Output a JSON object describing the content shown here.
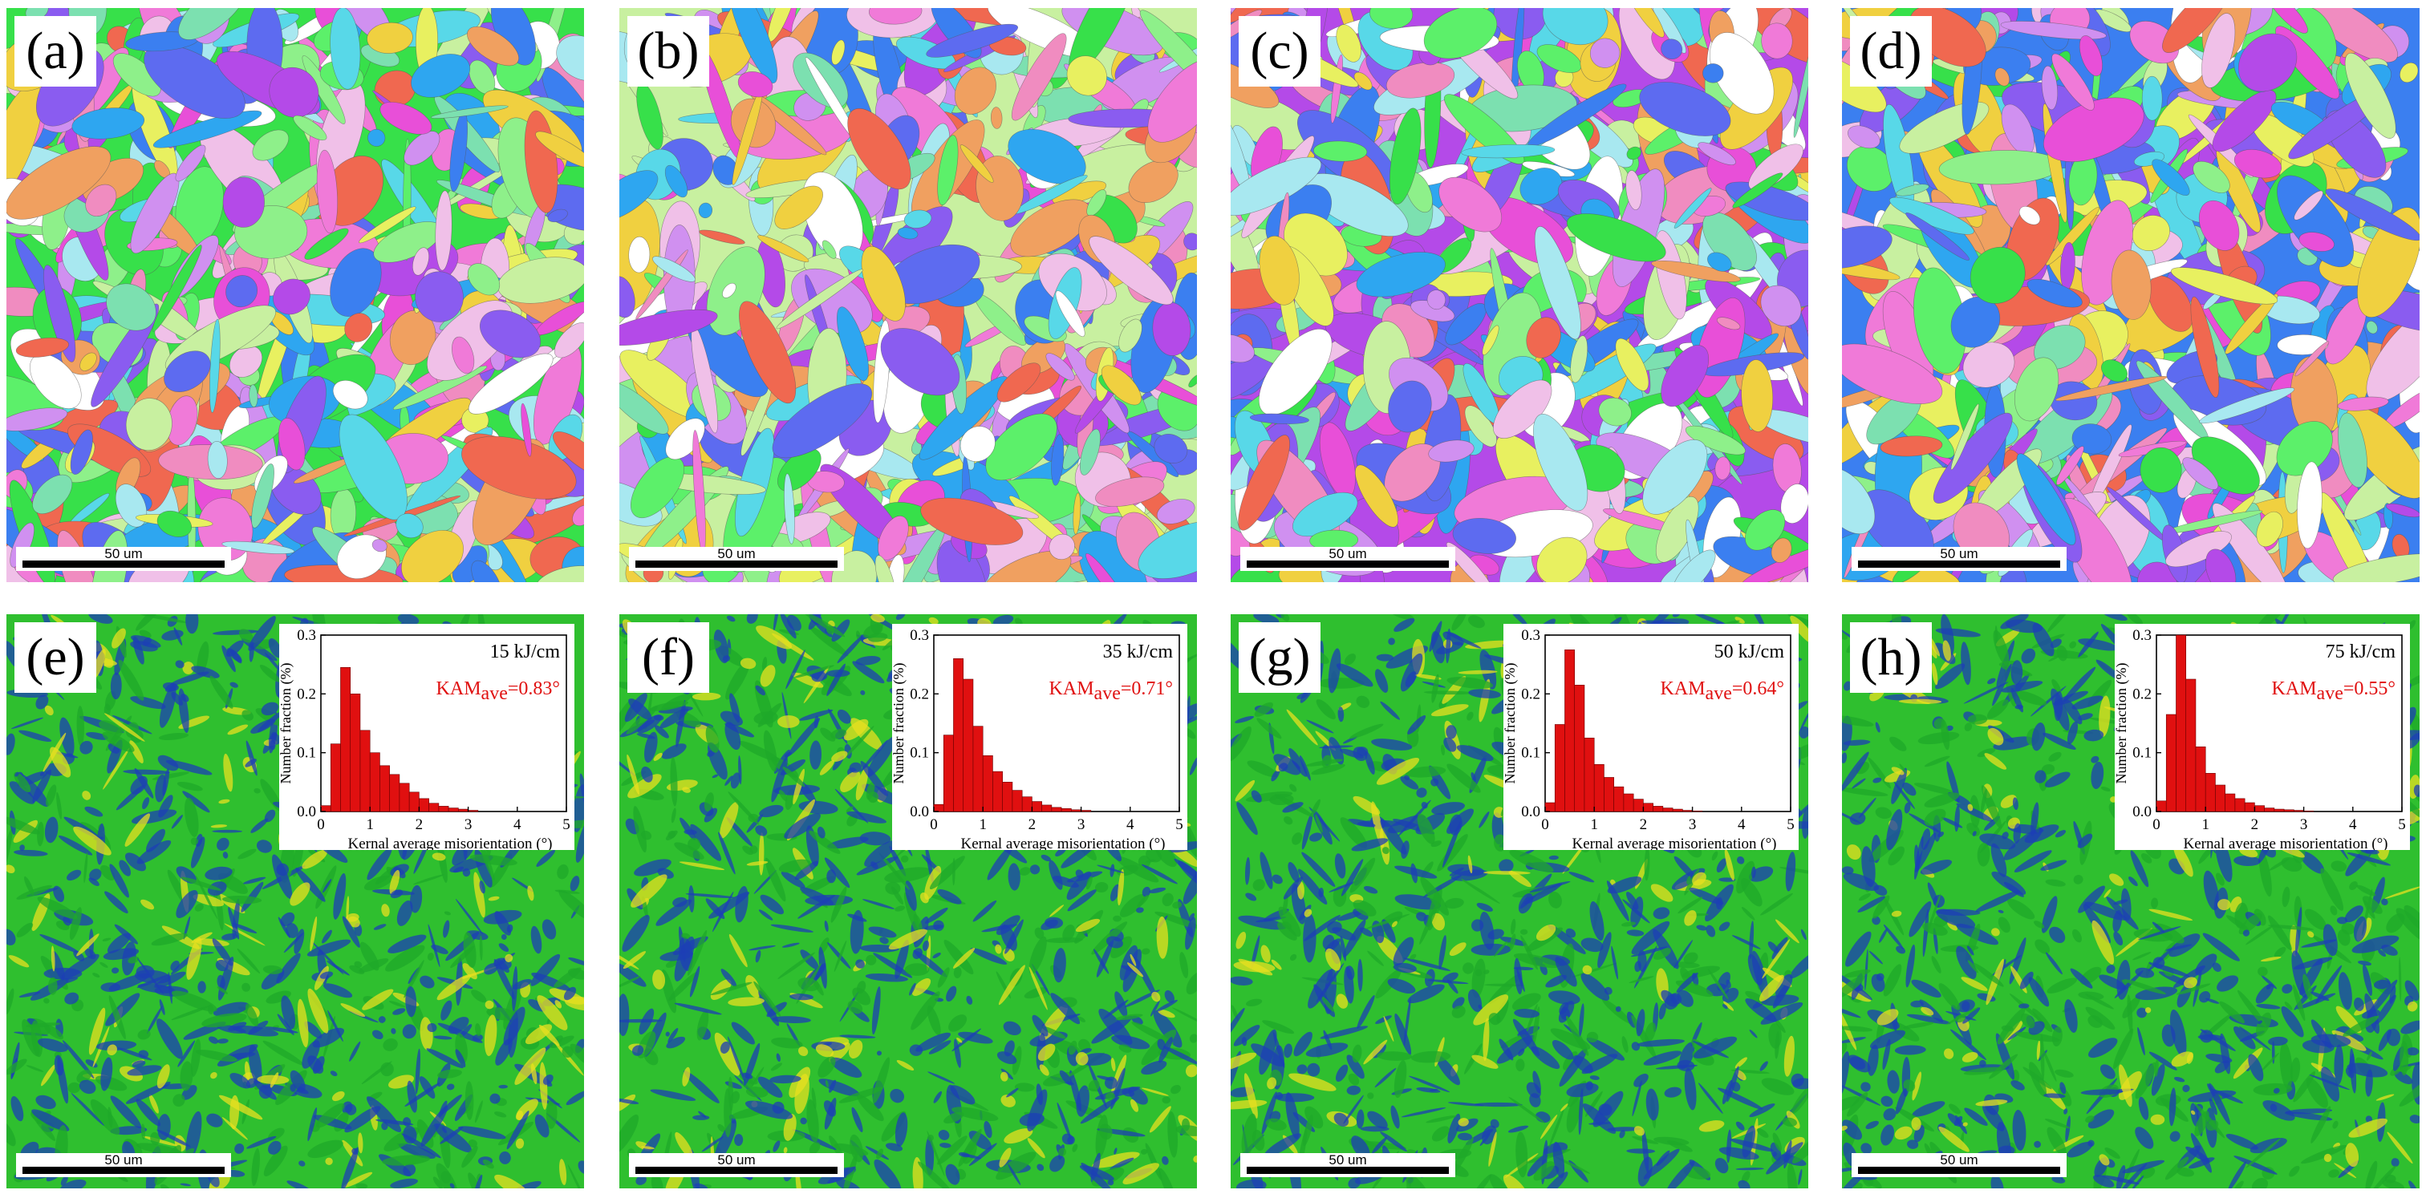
{
  "panels": [
    {
      "label": "(a)",
      "type": "ipf",
      "scale_bar": "50 um"
    },
    {
      "label": "(b)",
      "type": "ipf",
      "scale_bar": "50 um"
    },
    {
      "label": "(c)",
      "type": "ipf",
      "scale_bar": "50 um"
    },
    {
      "label": "(d)",
      "type": "ipf",
      "scale_bar": "50 um"
    },
    {
      "label": "(e)",
      "type": "kam",
      "scale_bar": "50 um"
    },
    {
      "label": "(f)",
      "type": "kam",
      "scale_bar": "50 um"
    },
    {
      "label": "(g)",
      "type": "kam",
      "scale_bar": "50 um"
    },
    {
      "label": "(h)",
      "type": "kam",
      "scale_bar": "50 um"
    }
  ],
  "colors": {
    "bar_fill": "#e01010",
    "kam_text": "#e01010",
    "kam_low": "#1c3fb5",
    "kam_mid": "#2fbf2f",
    "kam_high": "#e8e020"
  },
  "chart_data": [
    {
      "type": "bar",
      "panel": "(e)",
      "heat_input": "15 kJ/cm",
      "kam_prefix": "KAM",
      "kam_subscript": "ave",
      "kam_value": "=0.83°",
      "xlabel": "Kernal average misorientation (°)",
      "ylabel": "Number fraction (%)",
      "xlim": [
        0,
        5
      ],
      "ylim": [
        0,
        0.3
      ],
      "xticks": [
        "0",
        "1",
        "2",
        "3",
        "4",
        "5"
      ],
      "yticks": [
        "0.0",
        "0.1",
        "0.2",
        "0.3"
      ],
      "bin_width": 0.2,
      "x": [
        0.1,
        0.3,
        0.5,
        0.7,
        0.9,
        1.1,
        1.3,
        1.5,
        1.7,
        1.9,
        2.1,
        2.3,
        2.5,
        2.7,
        2.9,
        3.1
      ],
      "values": [
        0.01,
        0.115,
        0.245,
        0.2,
        0.138,
        0.1,
        0.078,
        0.063,
        0.048,
        0.033,
        0.022,
        0.014,
        0.009,
        0.006,
        0.004,
        0.002
      ]
    },
    {
      "type": "bar",
      "panel": "(f)",
      "heat_input": "35 kJ/cm",
      "kam_prefix": "KAM",
      "kam_subscript": "ave",
      "kam_value": "=0.71°",
      "xlabel": "Kernal average misorientation (°)",
      "ylabel": "Number fraction (%)",
      "xlim": [
        0,
        5
      ],
      "ylim": [
        0,
        0.3
      ],
      "xticks": [
        "0",
        "1",
        "2",
        "3",
        "4",
        "5"
      ],
      "yticks": [
        "0.0",
        "0.1",
        "0.2",
        "0.3"
      ],
      "bin_width": 0.2,
      "x": [
        0.1,
        0.3,
        0.5,
        0.7,
        0.9,
        1.1,
        1.3,
        1.5,
        1.7,
        1.9,
        2.1,
        2.3,
        2.5,
        2.7,
        2.9,
        3.1
      ],
      "values": [
        0.012,
        0.13,
        0.26,
        0.225,
        0.145,
        0.095,
        0.068,
        0.05,
        0.036,
        0.025,
        0.017,
        0.011,
        0.007,
        0.005,
        0.003,
        0.002
      ]
    },
    {
      "type": "bar",
      "panel": "(g)",
      "heat_input": "50 kJ/cm",
      "kam_prefix": "KAM",
      "kam_subscript": "ave",
      "kam_value": "=0.64°",
      "xlabel": "Kernal average misorientation (°)",
      "ylabel": "Number fraction (%)",
      "xlim": [
        0,
        5
      ],
      "ylim": [
        0,
        0.3
      ],
      "xticks": [
        "0",
        "1",
        "2",
        "3",
        "4",
        "5"
      ],
      "yticks": [
        "0.0",
        "0.1",
        "0.2",
        "0.3"
      ],
      "bin_width": 0.2,
      "x": [
        0.1,
        0.3,
        0.5,
        0.7,
        0.9,
        1.1,
        1.3,
        1.5,
        1.7,
        1.9,
        2.1,
        2.3,
        2.5,
        2.7,
        2.9,
        3.1
      ],
      "values": [
        0.015,
        0.148,
        0.275,
        0.215,
        0.125,
        0.08,
        0.058,
        0.042,
        0.03,
        0.021,
        0.014,
        0.009,
        0.006,
        0.004,
        0.002,
        0.001
      ]
    },
    {
      "type": "bar",
      "panel": "(h)",
      "heat_input": "75 kJ/cm",
      "kam_prefix": "KAM",
      "kam_subscript": "ave",
      "kam_value": "=0.55°",
      "xlabel": "Kernal average misorientation (°)",
      "ylabel": "Number fraction (%)",
      "xlim": [
        0,
        5
      ],
      "ylim": [
        0,
        0.3
      ],
      "xticks": [
        "0",
        "1",
        "2",
        "3",
        "4",
        "5"
      ],
      "yticks": [
        "0.0",
        "0.1",
        "0.2",
        "0.3"
      ],
      "bin_width": 0.2,
      "x": [
        0.1,
        0.3,
        0.5,
        0.7,
        0.9,
        1.1,
        1.3,
        1.5,
        1.7,
        1.9,
        2.1,
        2.3,
        2.5,
        2.7,
        2.9,
        3.1
      ],
      "values": [
        0.018,
        0.165,
        0.3,
        0.225,
        0.11,
        0.065,
        0.045,
        0.03,
        0.022,
        0.015,
        0.01,
        0.006,
        0.004,
        0.003,
        0.002,
        0.001
      ]
    }
  ]
}
